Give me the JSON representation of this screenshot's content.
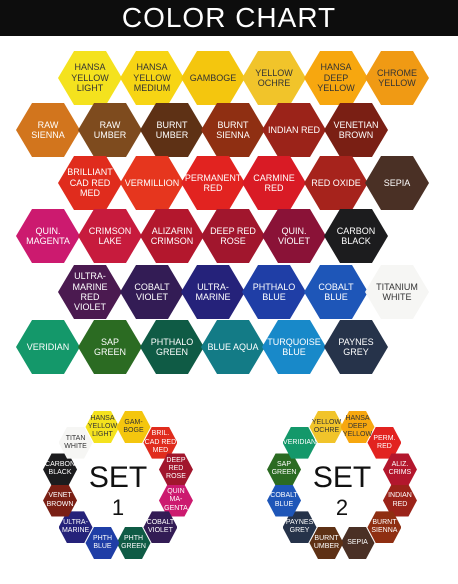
{
  "title": "COLOR CHART",
  "chart": {
    "rows": [
      [
        {
          "label": "HANSA YELLOW LIGHT",
          "color": "#f4e21e",
          "text": "#333333"
        },
        {
          "label": "HANSA YELLOW MEDIUM",
          "color": "#f7d514",
          "text": "#333333"
        },
        {
          "label": "GAMBOGE",
          "color": "#f4c60e",
          "text": "#333333"
        },
        {
          "label": "YELLOW OCHRE",
          "color": "#f1c42a",
          "text": "#333333"
        },
        {
          "label": "HANSA DEEP YELLOW",
          "color": "#f7a70f",
          "text": "#333333"
        },
        {
          "label": "CHROME YELLOW",
          "color": "#f09a14",
          "text": "#333333"
        }
      ],
      [
        {
          "label": "RAW SIENNA",
          "color": "#d2751d",
          "text": "#ffffff"
        },
        {
          "label": "RAW UMBER",
          "color": "#7e4b1e",
          "text": "#ffffff"
        },
        {
          "label": "BURNT UMBER",
          "color": "#5e3115",
          "text": "#ffffff"
        },
        {
          "label": "BURNT SIENNA",
          "color": "#8f2f12",
          "text": "#ffffff"
        },
        {
          "label": "INDIAN RED",
          "color": "#9b2319",
          "text": "#ffffff"
        },
        {
          "label": "VENETIAN BROWN",
          "color": "#7a1f14",
          "text": "#ffffff"
        }
      ],
      [
        {
          "label": "BRILLIANT CAD RED MED",
          "color": "#e02c1d",
          "text": "#ffffff"
        },
        {
          "label": "VERMILLION",
          "color": "#e6361e",
          "text": "#ffffff"
        },
        {
          "label": "PERMANENT RED",
          "color": "#e22320",
          "text": "#ffffff"
        },
        {
          "label": "CARMINE RED",
          "color": "#d91b25",
          "text": "#ffffff"
        },
        {
          "label": "RED OXIDE",
          "color": "#a6231c",
          "text": "#ffffff"
        },
        {
          "label": "SEPIA",
          "color": "#4a3025",
          "text": "#ffffff"
        }
      ],
      [
        {
          "label": "QUIN. MAGENTA",
          "color": "#cc1a6f",
          "text": "#ffffff"
        },
        {
          "label": "CRIMSON LAKE",
          "color": "#c71b3d",
          "text": "#ffffff"
        },
        {
          "label": "ALIZARIN CRIMSON",
          "color": "#b3172d",
          "text": "#ffffff"
        },
        {
          "label": "DEEP RED ROSE",
          "color": "#a1162d",
          "text": "#ffffff"
        },
        {
          "label": "QUIN. VIOLET",
          "color": "#8a1237",
          "text": "#ffffff"
        },
        {
          "label": "CARBON BLACK",
          "color": "#1c1c1e",
          "text": "#ffffff"
        }
      ],
      [
        {
          "label": "ULTRA-MARINE RED VIOLET",
          "color": "#4b1a50",
          "text": "#ffffff"
        },
        {
          "label": "COBALT VIOLET",
          "color": "#331c55",
          "text": "#ffffff"
        },
        {
          "label": "ULTRA-MARINE",
          "color": "#25227a",
          "text": "#ffffff"
        },
        {
          "label": "PHTHALO BLUE",
          "color": "#1f3ea6",
          "text": "#ffffff"
        },
        {
          "label": "COBALT BLUE",
          "color": "#1e56b8",
          "text": "#ffffff"
        },
        {
          "label": "TITANIUM WHITE",
          "color": "#f6f6f4",
          "text": "#333333"
        }
      ],
      [
        {
          "label": "VERIDIAN",
          "color": "#14986a",
          "text": "#ffffff"
        },
        {
          "label": "SAP GREEN",
          "color": "#2b6b22",
          "text": "#ffffff"
        },
        {
          "label": "PHTHALO GREEN",
          "color": "#0f5b45",
          "text": "#ffffff"
        },
        {
          "label": "BLUE AQUA",
          "color": "#137b86",
          "text": "#ffffff"
        },
        {
          "label": "TURQUOISE BLUE",
          "color": "#1889c9",
          "text": "#ffffff"
        },
        {
          "label": "PAYNES GREY",
          "color": "#26334a",
          "text": "#ffffff"
        }
      ]
    ]
  },
  "sets": [
    {
      "title": "SET",
      "number": "1",
      "cells": [
        {
          "label": "HANSA YELLOW LIGHT",
          "color": "#f4e21e",
          "text": "#333333"
        },
        {
          "label": "GAM-BOGE",
          "color": "#f4c60e",
          "text": "#333333"
        },
        {
          "label": "BRIL. CAD RED MED",
          "color": "#e02c1d",
          "text": "#ffffff"
        },
        {
          "label": "DEEP RED ROSE",
          "color": "#a1162d",
          "text": "#ffffff"
        },
        {
          "label": "QUIN MA-GENTA",
          "color": "#cc1a6f",
          "text": "#ffffff"
        },
        {
          "label": "COBALT VIOLET",
          "color": "#331c55",
          "text": "#ffffff"
        },
        {
          "label": "PHTH GREEN",
          "color": "#0f5b45",
          "text": "#ffffff"
        },
        {
          "label": "PHTH BLUE",
          "color": "#1f3ea6",
          "text": "#ffffff"
        },
        {
          "label": "ULTRA-MARINE",
          "color": "#25227a",
          "text": "#ffffff"
        },
        {
          "label": "VENET BROWN",
          "color": "#7a1f14",
          "text": "#ffffff"
        },
        {
          "label": "CARBON BLACK",
          "color": "#1c1c1e",
          "text": "#ffffff"
        },
        {
          "label": "TITAN WHITE",
          "color": "#f6f6f4",
          "text": "#333333"
        }
      ]
    },
    {
      "title": "SET",
      "number": "2",
      "cells": [
        {
          "label": "YELLOW OCHRE",
          "color": "#f1c42a",
          "text": "#333333"
        },
        {
          "label": "HANSA DEEP YELLOW",
          "color": "#f7a70f",
          "text": "#333333"
        },
        {
          "label": "PERM. RED",
          "color": "#e22320",
          "text": "#ffffff"
        },
        {
          "label": "ALIZ. CRIMS",
          "color": "#b3172d",
          "text": "#ffffff"
        },
        {
          "label": "INDIAN RED",
          "color": "#9b2319",
          "text": "#ffffff"
        },
        {
          "label": "BURNT SIENNA",
          "color": "#8f2f12",
          "text": "#ffffff"
        },
        {
          "label": "SEPIA",
          "color": "#4a3025",
          "text": "#ffffff"
        },
        {
          "label": "BURNT UMBER",
          "color": "#5e3115",
          "text": "#ffffff"
        },
        {
          "label": "PAYNES GREY",
          "color": "#26334a",
          "text": "#ffffff"
        },
        {
          "label": "COBALT BLUE",
          "color": "#1e56b8",
          "text": "#ffffff"
        },
        {
          "label": "SAP GREEN",
          "color": "#2b6b22",
          "text": "#ffffff"
        },
        {
          "label": "VERIDIAN",
          "color": "#14986a",
          "text": "#ffffff"
        }
      ]
    }
  ]
}
